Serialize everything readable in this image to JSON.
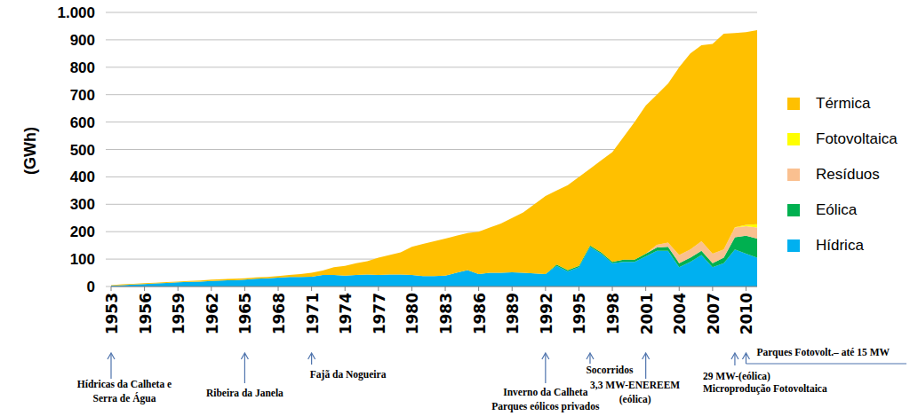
{
  "chart_data": {
    "type": "area",
    "stacked": true,
    "grid": true,
    "legend": "right",
    "y_label": "(GWh)",
    "x": [
      1953,
      1954,
      1955,
      1956,
      1957,
      1958,
      1959,
      1960,
      1961,
      1962,
      1963,
      1964,
      1965,
      1966,
      1967,
      1968,
      1969,
      1970,
      1971,
      1972,
      1973,
      1974,
      1975,
      1976,
      1977,
      1978,
      1979,
      1980,
      1981,
      1982,
      1983,
      1984,
      1985,
      1986,
      1987,
      1988,
      1989,
      1990,
      1991,
      1992,
      1993,
      1994,
      1995,
      1996,
      1997,
      1998,
      1999,
      2000,
      2001,
      2002,
      2003,
      2004,
      2005,
      2006,
      2007,
      2008,
      2009,
      2010,
      2011
    ],
    "xlim": [
      1953,
      2011
    ],
    "xticks": [
      1953,
      1956,
      1959,
      1962,
      1965,
      1968,
      1971,
      1974,
      1977,
      1980,
      1983,
      1986,
      1989,
      1992,
      1995,
      1998,
      2001,
      2004,
      2007,
      2010
    ],
    "ylim": [
      0,
      1000
    ],
    "yticks": [
      0,
      100,
      200,
      300,
      400,
      500,
      600,
      700,
      800,
      900,
      {
        "value": 1000,
        "label": "1.000"
      }
    ],
    "series": [
      {
        "name": "Hídrica",
        "color": "#00b0f0",
        "values": [
          3,
          5,
          7,
          9,
          11,
          13,
          15,
          17,
          18,
          20,
          22,
          23,
          25,
          28,
          30,
          32,
          35,
          35,
          36,
          42,
          42,
          40,
          42,
          44,
          42,
          44,
          44,
          42,
          38,
          38,
          40,
          50,
          60,
          45,
          50,
          50,
          52,
          50,
          48,
          45,
          75,
          55,
          70,
          145,
          120,
          85,
          90,
          90,
          110,
          130,
          130,
          70,
          90,
          115,
          70,
          85,
          135,
          120,
          105
        ]
      },
      {
        "name": "Eólica",
        "color": "#00b050",
        "values": [
          0,
          0,
          0,
          0,
          0,
          0,
          0,
          0,
          0,
          0,
          0,
          0,
          0,
          0,
          0,
          0,
          0,
          0,
          0,
          0,
          0,
          0,
          0,
          0,
          0,
          0,
          0,
          0,
          0,
          0,
          0,
          0,
          0,
          0,
          0,
          0,
          0,
          0,
          0,
          0,
          5,
          5,
          5,
          5,
          5,
          5,
          8,
          8,
          10,
          12,
          15,
          15,
          15,
          15,
          15,
          20,
          45,
          65,
          70
        ]
      },
      {
        "name": "Resíduos",
        "color": "#fac090",
        "values": [
          0,
          0,
          0,
          0,
          0,
          0,
          0,
          0,
          0,
          0,
          0,
          0,
          0,
          0,
          0,
          0,
          0,
          0,
          0,
          0,
          0,
          0,
          0,
          0,
          0,
          0,
          0,
          0,
          0,
          0,
          0,
          0,
          0,
          0,
          0,
          0,
          0,
          0,
          0,
          0,
          0,
          0,
          0,
          0,
          0,
          0,
          0,
          0,
          0,
          10,
          15,
          30,
          30,
          35,
          35,
          30,
          35,
          35,
          40
        ]
      },
      {
        "name": "Fotovoltaica",
        "color": "#ffff00",
        "values": [
          0,
          0,
          0,
          0,
          0,
          0,
          0,
          0,
          0,
          0,
          0,
          0,
          0,
          0,
          0,
          0,
          0,
          0,
          0,
          0,
          0,
          0,
          0,
          0,
          0,
          0,
          0,
          0,
          0,
          0,
          0,
          0,
          0,
          0,
          0,
          0,
          0,
          0,
          0,
          0,
          0,
          0,
          0,
          0,
          0,
          0,
          0,
          0,
          0,
          0,
          0,
          0,
          0,
          0,
          0,
          0,
          1,
          5,
          12
        ]
      },
      {
        "name": "Térmica",
        "color": "#ffc000",
        "values": [
          2,
          3,
          3,
          3,
          3,
          3,
          3,
          3,
          4,
          5,
          5,
          5,
          5,
          5,
          5,
          6,
          7,
          10,
          14,
          16,
          28,
          35,
          43,
          48,
          63,
          71,
          81,
          103,
          117,
          127,
          135,
          135,
          135,
          155,
          165,
          180,
          198,
          220,
          252,
          285,
          270,
          310,
          325,
          280,
          335,
          400,
          447,
          502,
          540,
          548,
          580,
          685,
          715,
          715,
          765,
          787,
          709,
          703,
          708
        ]
      }
    ],
    "annotations": [
      {
        "text": [
          "Hídricas da Calheta e",
          "Serra de Água"
        ],
        "x": 1953
      },
      {
        "text": [
          "Ribeira da Janela"
        ],
        "x": 1965
      },
      {
        "text": [
          "Fajã da Nogueira"
        ],
        "x": 1971
      },
      {
        "text": [
          "Inverno da Calheta",
          "Parques eólicos privados"
        ],
        "x": 1992
      },
      {
        "text": [
          "Socorridos"
        ],
        "x": 1996
      },
      {
        "text": [
          "3,3 MW-ENEREEM",
          "(eólica)"
        ],
        "x": 2001
      },
      {
        "text": [
          "29 MW-(eólica)",
          "Microprodução Fotovoltaica"
        ],
        "x": 2009
      },
      {
        "text": [
          "Parques Fotovolt.– até 15 MW"
        ],
        "x": 2010
      }
    ]
  }
}
